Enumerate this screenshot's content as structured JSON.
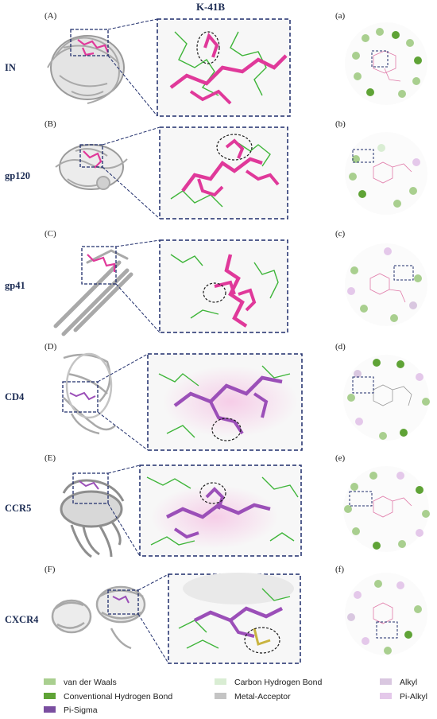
{
  "title": "K-41B",
  "rows": [
    {
      "id": "in",
      "label": "IN",
      "left_panel": "(A)",
      "right_panel": "(a)"
    },
    {
      "id": "gp120",
      "label": "gp120",
      "left_panel": "(B)",
      "right_panel": "(b)"
    },
    {
      "id": "gp41",
      "label": "gp41",
      "left_panel": "(C)",
      "right_panel": "(c)"
    },
    {
      "id": "cd4",
      "label": "CD4",
      "left_panel": "(D)",
      "right_panel": "(d)"
    },
    {
      "id": "ccr5",
      "label": "CCR5",
      "left_panel": "(E)",
      "right_panel": "(e)"
    },
    {
      "id": "cxcr4",
      "label": "CXCR4",
      "left_panel": "(F)",
      "right_panel": "(f)"
    }
  ],
  "legend": [
    {
      "label": "van der Waals",
      "color": "#a9cf8f"
    },
    {
      "label": "Carbon Hydrogen Bond",
      "color": "#d9edd3"
    },
    {
      "label": "Alkyl",
      "color": "#d9c7e0"
    },
    {
      "label": "Conventional Hydrogen Bond",
      "color": "#5fa336"
    },
    {
      "label": "Metal-Acceptor",
      "color": "#c4c4c4"
    },
    {
      "label": "Pi-Alkyl",
      "color": "#e4c8ea"
    },
    {
      "label": "Pi-Sigma",
      "color": "#7a4ea0"
    }
  ],
  "colors": {
    "dashed_box": "#1f2d6b",
    "ligand": "#e0399a",
    "residue": "#3fb53a",
    "protein": "#c8c8c8"
  }
}
